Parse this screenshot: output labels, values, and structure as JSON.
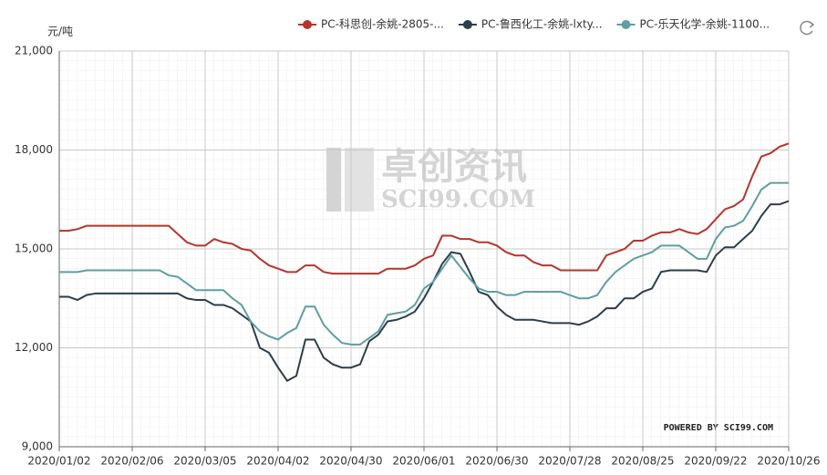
{
  "chart_data": {
    "type": "line",
    "y_unit": "元/吨",
    "watermark": "卓创资讯",
    "watermark_url": "SCI99.COM",
    "credit": "POWERED BY SCI99.COM",
    "categories": [
      "2020/01/02",
      null,
      null,
      null,
      null,
      null,
      null,
      null,
      "2020/02/06",
      null,
      null,
      null,
      null,
      null,
      null,
      null,
      "2020/03/05",
      null,
      null,
      null,
      null,
      null,
      null,
      null,
      "2020/04/02",
      null,
      null,
      null,
      null,
      null,
      null,
      null,
      "2020/04/30",
      null,
      null,
      null,
      null,
      null,
      null,
      null,
      "2020/06/01",
      null,
      null,
      null,
      null,
      null,
      null,
      null,
      "2020/06/30",
      null,
      null,
      null,
      null,
      null,
      null,
      null,
      "2020/07/28",
      null,
      null,
      null,
      null,
      null,
      null,
      null,
      "2020/08/25",
      null,
      null,
      null,
      null,
      null,
      null,
      null,
      "2020/09/22",
      null,
      null,
      null,
      null,
      null,
      null,
      null,
      "2020/10/26"
    ],
    "ylim": [
      9000,
      21000
    ],
    "yticks": [
      {
        "value": 9000,
        "label": "9,000"
      },
      {
        "value": 12000,
        "label": "12,000"
      },
      {
        "value": 15000,
        "label": "15,000"
      },
      {
        "value": 18000,
        "label": "18,000"
      },
      {
        "value": 21000,
        "label": "21,000"
      }
    ],
    "grid": true,
    "series": [
      {
        "name": "PC-科思创-余姚-2805-...",
        "color": "#b5352b",
        "values": [
          15550,
          15550,
          15600,
          15700,
          15700,
          15700,
          15700,
          15700,
          15700,
          15700,
          15700,
          15700,
          15700,
          15450,
          15200,
          15100,
          15100,
          15300,
          15200,
          15150,
          15000,
          14950,
          14700,
          14500,
          14400,
          14300,
          14300,
          14500,
          14500,
          14300,
          14250,
          14250,
          14250,
          14250,
          14250,
          14250,
          14400,
          14400,
          14400,
          14500,
          14700,
          14800,
          15400,
          15400,
          15300,
          15300,
          15200,
          15200,
          15100,
          14900,
          14800,
          14800,
          14600,
          14500,
          14500,
          14350,
          14350,
          14350,
          14350,
          14350,
          14800,
          14900,
          15000,
          15250,
          15250,
          15400,
          15500,
          15500,
          15600,
          15500,
          15450,
          15600,
          15900,
          16200,
          16300,
          16500,
          17200,
          17800,
          17900,
          18100,
          18200
        ]
      },
      {
        "name": "PC-鲁西化工-余姚-lxty...",
        "color": "#2d3e4a",
        "values": [
          13550,
          13550,
          13450,
          13600,
          13650,
          13650,
          13650,
          13650,
          13650,
          13650,
          13650,
          13650,
          13650,
          13650,
          13500,
          13450,
          13450,
          13300,
          13300,
          13200,
          13000,
          12800,
          12000,
          11850,
          11400,
          11000,
          11150,
          12250,
          12250,
          11700,
          11500,
          11400,
          11400,
          11500,
          12200,
          12400,
          12800,
          12850,
          12950,
          13100,
          13500,
          14000,
          14550,
          14900,
          14850,
          14300,
          13700,
          13600,
          13250,
          13000,
          12850,
          12850,
          12850,
          12800,
          12750,
          12750,
          12750,
          12700,
          12800,
          12950,
          13200,
          13200,
          13500,
          13500,
          13700,
          13800,
          14300,
          14350,
          14350,
          14350,
          14350,
          14300,
          14800,
          15050,
          15050,
          15300,
          15550,
          16000,
          16350,
          16350,
          16450
        ]
      },
      {
        "name": "PC-乐天化学-余姚-1100...",
        "color": "#5f9ea0",
        "values": [
          14300,
          14300,
          14300,
          14350,
          14350,
          14350,
          14350,
          14350,
          14350,
          14350,
          14350,
          14350,
          14200,
          14150,
          13950,
          13750,
          13750,
          13750,
          13750,
          13500,
          13300,
          12800,
          12500,
          12350,
          12250,
          12450,
          12600,
          13250,
          13250,
          12700,
          12400,
          12150,
          12100,
          12100,
          12300,
          12500,
          13000,
          13050,
          13100,
          13300,
          13800,
          14000,
          14400,
          14800,
          14450,
          14100,
          13800,
          13700,
          13700,
          13600,
          13600,
          13700,
          13700,
          13700,
          13700,
          13700,
          13600,
          13500,
          13500,
          13600,
          14000,
          14300,
          14500,
          14700,
          14800,
          14900,
          15100,
          15100,
          15100,
          14900,
          14700,
          14700,
          15300,
          15650,
          15700,
          15850,
          16300,
          16800,
          17000,
          17000,
          17000
        ]
      }
    ]
  }
}
